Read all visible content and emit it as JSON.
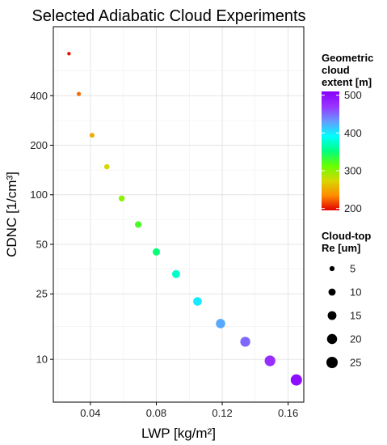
{
  "chart_data": {
    "type": "scatter",
    "title": "Selected Adiabatic Cloud Experiments",
    "xlabel": "LWP [kg/m²]",
    "ylabel": "CDNC [1/cm³]",
    "x_scale": "linear",
    "y_scale": "log",
    "xlim": [
      0.0175,
      0.1695
    ],
    "ylim": [
      5.5,
      1050
    ],
    "x_ticks": [
      0.04,
      0.08,
      0.12,
      0.16
    ],
    "x_tick_labels": [
      "0.04",
      "0.08",
      "0.12",
      "0.16"
    ],
    "y_ticks": [
      10,
      25,
      50,
      100,
      200,
      400
    ],
    "y_tick_labels": [
      "10",
      "25",
      "50",
      "100",
      "200",
      "400"
    ],
    "grid": true,
    "points": [
      {
        "x": 0.027,
        "y": 720,
        "extent": 200,
        "re": 2.5
      },
      {
        "x": 0.033,
        "y": 410,
        "extent": 225,
        "re": 3.5
      },
      {
        "x": 0.041,
        "y": 230,
        "extent": 250,
        "re": 4.5
      },
      {
        "x": 0.05,
        "y": 148,
        "extent": 275,
        "re": 5.5
      },
      {
        "x": 0.059,
        "y": 95,
        "extent": 300,
        "re": 7
      },
      {
        "x": 0.069,
        "y": 66,
        "extent": 325,
        "re": 8.5
      },
      {
        "x": 0.08,
        "y": 45,
        "extent": 350,
        "re": 10.5
      },
      {
        "x": 0.092,
        "y": 33,
        "extent": 375,
        "re": 12.5
      },
      {
        "x": 0.105,
        "y": 22.5,
        "extent": 400,
        "re": 14.5
      },
      {
        "x": 0.119,
        "y": 16.5,
        "extent": 425,
        "re": 17
      },
      {
        "x": 0.134,
        "y": 12.8,
        "extent": 450,
        "re": 19.5
      },
      {
        "x": 0.149,
        "y": 9.8,
        "extent": 475,
        "re": 22.5
      },
      {
        "x": 0.165,
        "y": 7.5,
        "extent": 500,
        "re": 25
      }
    ],
    "color_legend": {
      "title_lines": [
        "Geometric",
        "cloud",
        "extent [m]"
      ],
      "range": [
        195,
        510
      ],
      "ticks": [
        200,
        300,
        400,
        500
      ],
      "tick_labels": [
        "200",
        "300",
        "400",
        "500"
      ],
      "colors": [
        "#e30000",
        "#ff8c00",
        "#d7d700",
        "#66ff00",
        "#00ff80",
        "#00ffff",
        "#6699ff",
        "#9933ff",
        "#8800ff"
      ]
    },
    "size_legend": {
      "title_lines": [
        "Cloud-top",
        "Re [um]"
      ],
      "values": [
        5,
        10,
        15,
        20,
        25
      ],
      "labels": [
        "5",
        "10",
        "15",
        "20",
        "25"
      ]
    },
    "legend_position": "right"
  }
}
